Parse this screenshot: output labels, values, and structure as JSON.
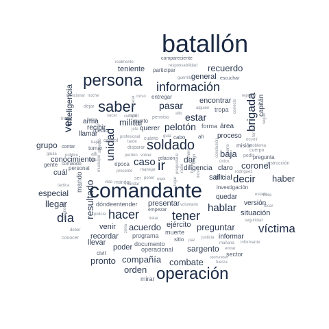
{
  "word_cloud": {
    "color": "#1b2a44",
    "words": [
      {
        "text": "batallón"
      },
      {
        "text": "comandante"
      },
      {
        "text": "operación"
      },
      {
        "text": "persona"
      },
      {
        "text": "saber"
      },
      {
        "text": "soldado"
      },
      {
        "text": "información"
      },
      {
        "text": "tener"
      },
      {
        "text": "hacer"
      },
      {
        "text": "día"
      },
      {
        "text": "víctima"
      },
      {
        "text": "brigada"
      },
      {
        "text": "hablar"
      },
      {
        "text": "unidad"
      },
      {
        "text": "resultado"
      },
      {
        "text": "ir"
      },
      {
        "text": "ver"
      },
      {
        "text": "decir"
      },
      {
        "text": "pasar"
      },
      {
        "text": "caso"
      },
      {
        "text": "pelotón"
      },
      {
        "text": "militar"
      },
      {
        "text": "estar"
      },
      {
        "text": "recuerdo"
      },
      {
        "text": "preguntar"
      },
      {
        "text": "acuerdo"
      },
      {
        "text": "compañía"
      },
      {
        "text": "orden"
      },
      {
        "text": "pronto"
      },
      {
        "text": "llegar"
      },
      {
        "text": "coronel"
      },
      {
        "text": "haber"
      },
      {
        "text": "inteligencia"
      },
      {
        "text": "baja"
      },
      {
        "text": "combate"
      },
      {
        "text": "dar"
      },
      {
        "text": "sargento"
      },
      {
        "text": "encontrar"
      },
      {
        "text": "situación"
      },
      {
        "text": "teniente"
      },
      {
        "text": "capitán"
      },
      {
        "text": "grupo"
      },
      {
        "text": "especial"
      },
      {
        "text": "conocimiento"
      },
      {
        "text": "cuál"
      },
      {
        "text": "venir"
      },
      {
        "text": "llevar"
      },
      {
        "text": "recordar"
      },
      {
        "text": "poder"
      },
      {
        "text": "salir"
      },
      {
        "text": "ejército"
      },
      {
        "text": "presentar"
      },
      {
        "text": "general"
      },
      {
        "text": "mando"
      },
      {
        "text": "proceso"
      },
      {
        "text": "querer"
      },
      {
        "text": "llamar"
      },
      {
        "text": "recibir"
      },
      {
        "text": "arma"
      },
      {
        "text": "área"
      },
      {
        "text": "forma"
      },
      {
        "text": "tropa"
      },
      {
        "text": "oficial"
      },
      {
        "text": "versión"
      },
      {
        "text": "informar"
      },
      {
        "text": "quedar"
      },
      {
        "text": "sector"
      },
      {
        "text": "mirar"
      },
      {
        "text": "muerte"
      },
      {
        "text": "documento"
      },
      {
        "text": "operacional"
      },
      {
        "text": "programa"
      },
      {
        "text": "sitio"
      },
      {
        "text": "investigación"
      },
      {
        "text": "diligencia"
      },
      {
        "text": "claro"
      },
      {
        "text": "misión"
      },
      {
        "text": "gente"
      },
      {
        "text": "comando"
      },
      {
        "text": "personal"
      },
      {
        "text": "contar"
      },
      {
        "text": "época"
      },
      {
        "text": "relación"
      },
      {
        "text": "dónde"
      },
      {
        "text": "entender"
      },
      {
        "text": "civil"
      },
      {
        "text": "participar"
      },
      {
        "text": "compareciente"
      },
      {
        "text": "escuchar"
      },
      {
        "text": "entregar"
      },
      {
        "text": "punto"
      },
      {
        "text": "medio"
      },
      {
        "text": "tomar"
      },
      {
        "text": "morir"
      },
      {
        "text": "guerrilla"
      },
      {
        "text": "responsabilidad"
      },
      {
        "text": "realmente"
      },
      {
        "text": "mencionar"
      },
      {
        "text": "noche"
      },
      {
        "text": "curso"
      },
      {
        "text": "dejar"
      },
      {
        "text": "frente"
      },
      {
        "text": "sacar"
      },
      {
        "text": "cumplir"
      },
      {
        "text": "alto"
      },
      {
        "text": "alguien"
      },
      {
        "text": "reportar"
      },
      {
        "text": "control"
      },
      {
        "text": "profesional"
      },
      {
        "text": "tarde"
      },
      {
        "text": "disparar"
      },
      {
        "text": "cuánto"
      },
      {
        "text": "volver"
      },
      {
        "text": "perdón"
      },
      {
        "text": "guía"
      },
      {
        "text": "cabo"
      },
      {
        "text": "ah"
      },
      {
        "text": "único"
      },
      {
        "text": "pedir"
      },
      {
        "text": "cuerpo"
      },
      {
        "text": "problema"
      },
      {
        "text": "pregunta"
      },
      {
        "text": "instrucción"
      },
      {
        "text": "rodríguez"
      },
      {
        "text": "tocar"
      },
      {
        "text": "hora"
      },
      {
        "text": "seguridad"
      },
      {
        "text": "ocurrir"
      },
      {
        "text": "familia"
      },
      {
        "text": "mañana"
      },
      {
        "text": "informante"
      },
      {
        "text": "entrar"
      },
      {
        "text": "fuerza"
      },
      {
        "text": "paz"
      },
      {
        "text": "justicia"
      },
      {
        "text": "oportunidad"
      },
      {
        "text": "voluntario"
      },
      {
        "text": "empezar"
      },
      {
        "text": "tratar"
      },
      {
        "text": "manejar"
      },
      {
        "text": "nivel"
      },
      {
        "text": "ser"
      },
      {
        "text": "poner"
      },
      {
        "text": "mandar"
      },
      {
        "text": "vida"
      },
      {
        "text": "táctica"
      },
      {
        "text": "deber"
      },
      {
        "text": "conocer"
      },
      {
        "text": "zona"
      },
      {
        "text": "policía"
      },
      {
        "text": "gaula"
      },
      {
        "text": "público"
      },
      {
        "text": "allí"
      },
      {
        "text": "bajar"
      },
      {
        "text": "llama"
      },
      {
        "text": "presente"
      },
      {
        "text": "permiso"
      },
      {
        "text": "jefe"
      },
      {
        "text": "atacar"
      },
      {
        "text": "llega"
      },
      {
        "text": "reconocer"
      },
      {
        "text": "dinero"
      },
      {
        "text": "conclusión"
      },
      {
        "text": "seguir"
      },
      {
        "text": "municipio"
      },
      {
        "text": "correcto"
      },
      {
        "text": "sucedió"
      },
      {
        "text": "radio"
      },
      {
        "text": "hecho"
      },
      {
        "text": "dirigir"
      },
      {
        "text": "lugar"
      },
      {
        "text": "muerto"
      },
      {
        "text": "mover"
      },
      {
        "text": "mandar"
      },
      {
        "text": "preguntarle"
      },
      {
        "text": "estado"
      }
    ]
  }
}
